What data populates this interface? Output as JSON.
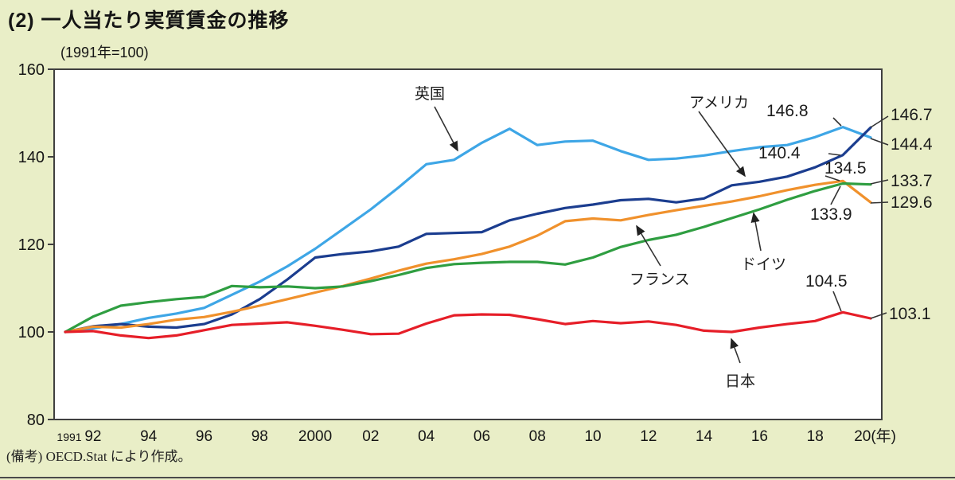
{
  "header": {
    "title": "(2) 一人当たり実質賃金の推移",
    "subtitle": "(1991年=100)"
  },
  "note": "(備考) OECD.Stat により作成。",
  "annotations": {
    "uk_label": "英国",
    "us_label": "アメリカ",
    "fr_label": "フランス",
    "de_label": "ドイツ",
    "jp_label": "日本",
    "uk_2019": "146.8",
    "us_2019": "140.4",
    "fr_2019": "134.5",
    "de_2019": "133.9",
    "jp_2019": "104.5",
    "us_2020": "146.7",
    "uk_2020": "144.4",
    "de_2020": "133.7",
    "fr_2020": "129.6",
    "jp_2020": "103.1"
  },
  "chart_data": {
    "type": "line",
    "title": "一人当たり実質賃金の推移",
    "index_note": "1991年=100",
    "source": "OECD.Stat により作成",
    "x_range": [
      1991,
      2020
    ],
    "ylim": [
      80,
      160
    ],
    "y_ticks": [
      80,
      100,
      120,
      140,
      160
    ],
    "x_axis_suffix": "(年)",
    "x_ticks": [
      {
        "label": "1991",
        "year": 1991,
        "small": true
      },
      {
        "label": "92",
        "year": 1992
      },
      {
        "label": "94",
        "year": 1994
      },
      {
        "label": "96",
        "year": 1996
      },
      {
        "label": "98",
        "year": 1998
      },
      {
        "label": "2000",
        "year": 2000
      },
      {
        "label": "02",
        "year": 2002
      },
      {
        "label": "04",
        "year": 2004
      },
      {
        "label": "06",
        "year": 2006
      },
      {
        "label": "08",
        "year": 2008
      },
      {
        "label": "10",
        "year": 2010
      },
      {
        "label": "12",
        "year": 2012
      },
      {
        "label": "14",
        "year": 2014
      },
      {
        "label": "16",
        "year": 2016
      },
      {
        "label": "18",
        "year": 2018
      },
      {
        "label": "20",
        "year": 2020,
        "suffix": true
      }
    ],
    "series": [
      {
        "id": "uk",
        "name": "英国",
        "color": "#3ea6e6",
        "value_2019": 146.8,
        "value_2020": 144.4,
        "values": [
          100,
          100.8,
          101.8,
          103.2,
          104.2,
          105.5,
          108.5,
          111.5,
          115.0,
          119.0,
          123.5,
          128.0,
          133.0,
          138.3,
          139.3,
          143.2,
          146.4,
          142.7,
          143.5,
          143.7,
          141.3,
          139.3,
          139.6,
          140.3,
          141.3,
          142.2,
          142.7,
          144.5,
          146.8,
          144.4
        ]
      },
      {
        "id": "us",
        "name": "アメリカ",
        "color": "#1b3d8f",
        "value_2019": 140.4,
        "value_2020": 146.7,
        "values": [
          100,
          101.3,
          101.8,
          101.2,
          101.0,
          101.8,
          104.0,
          107.5,
          112.0,
          117.0,
          117.8,
          118.4,
          119.5,
          122.4,
          122.6,
          122.8,
          125.5,
          127.0,
          128.3,
          129.1,
          130.1,
          130.4,
          129.6,
          130.5,
          133.5,
          134.3,
          135.5,
          137.6,
          140.4,
          146.7
        ]
      },
      {
        "id": "fr",
        "name": "フランス",
        "color": "#f0912c",
        "value_2019": 134.5,
        "value_2020": 129.6,
        "values": [
          100,
          101.2,
          101.0,
          101.8,
          102.8,
          103.4,
          104.6,
          106.0,
          107.5,
          109.0,
          110.5,
          112.2,
          114.0,
          115.6,
          116.6,
          117.8,
          119.5,
          122.0,
          125.3,
          125.9,
          125.5,
          126.7,
          127.8,
          128.8,
          129.8,
          131.0,
          132.4,
          133.6,
          134.5,
          129.6
        ]
      },
      {
        "id": "de",
        "name": "ドイツ",
        "color": "#2f9e41",
        "value_2019": 133.9,
        "value_2020": 133.7,
        "values": [
          100,
          103.5,
          106.0,
          106.8,
          107.5,
          108.0,
          110.5,
          110.2,
          110.4,
          110.0,
          110.4,
          111.6,
          113.0,
          114.6,
          115.5,
          115.8,
          116.0,
          116.0,
          115.4,
          117.0,
          119.4,
          121.0,
          122.2,
          124.0,
          126.0,
          128.0,
          130.2,
          132.2,
          133.9,
          133.7
        ]
      },
      {
        "id": "jp",
        "name": "日本",
        "color": "#e61e28",
        "value_2019": 104.5,
        "value_2020": 103.1,
        "values": [
          100,
          100.2,
          99.2,
          98.6,
          99.2,
          100.4,
          101.6,
          101.9,
          102.2,
          101.4,
          100.5,
          99.5,
          99.6,
          101.9,
          103.8,
          104.0,
          103.9,
          102.9,
          101.8,
          102.5,
          102.0,
          102.4,
          101.6,
          100.3,
          100.0,
          101.0,
          101.8,
          102.5,
          104.5,
          103.1
        ]
      }
    ]
  }
}
